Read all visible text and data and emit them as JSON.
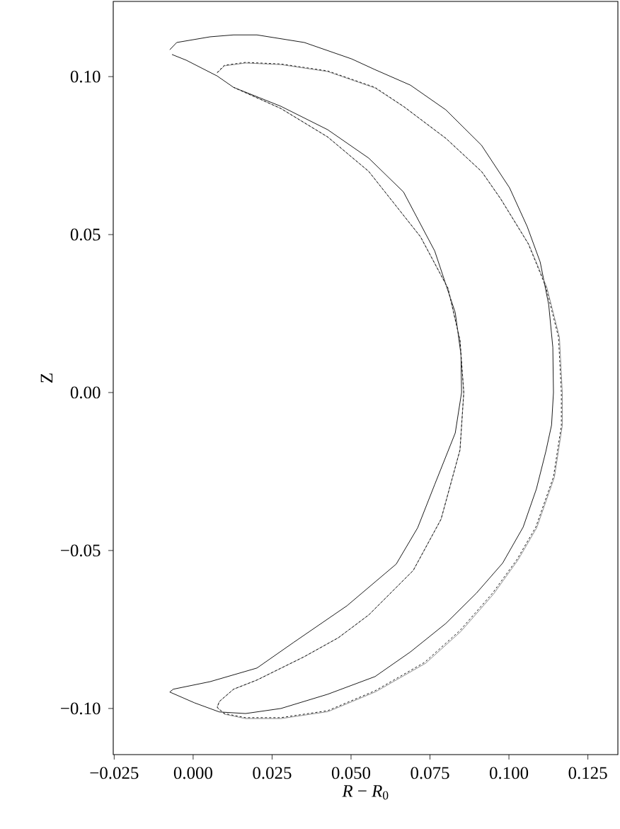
{
  "chart_data": {
    "type": "line",
    "xlabel": "*R* − *R*$_{0}$",
    "ylabel": "Z",
    "xlim": [
      -0.0253,
      0.1345
    ],
    "ylim": [
      -0.1146,
      0.1238
    ],
    "xticks": [
      {
        "value": -0.025,
        "label": "−0.025"
      },
      {
        "value": 0,
        "label": "0.000"
      },
      {
        "value": 0.025,
        "label": "0.025"
      },
      {
        "value": 0.05,
        "label": "0.050"
      },
      {
        "value": 0.075,
        "label": "0.075"
      },
      {
        "value": 0.1,
        "label": "0.100"
      },
      {
        "value": 0.125,
        "label": "0.125"
      }
    ],
    "yticks": [
      {
        "value": -0.1,
        "label": "−0.10"
      },
      {
        "value": -0.05,
        "label": "−0.05"
      },
      {
        "value": 0,
        "label": "0.00"
      },
      {
        "value": 0.05,
        "label": "0.05"
      },
      {
        "value": 0.1,
        "label": "0.10"
      }
    ],
    "series": [
      {
        "color": "#000000",
        "line_style": "solid",
        "x": [
          -0.0074,
          -0.0052,
          0.0054,
          0.0128,
          0.0202,
          0.0352,
          0.0502,
          0.0576,
          0.0688,
          0.08,
          0.0913,
          0.1002,
          0.1058,
          0.1099,
          0.1126,
          0.1139,
          0.1141,
          0.1135,
          0.1117,
          0.1087,
          0.1045,
          0.098,
          0.0897,
          0.08,
          0.0688,
          0.0576,
          0.0426,
          0.0278,
          0.0166,
          0.0083,
          0.0004,
          -0.0074,
          -0.0063,
          0.0054,
          0.0202,
          0.0318,
          0.0487,
          0.0643,
          0.0711,
          0.0765,
          0.083,
          0.085,
          0.0848,
          0.083,
          0.0765,
          0.0666,
          0.0556,
          0.0426,
          0.0278,
          0.0128,
          0.0076,
          -0.0022,
          -0.0067
        ],
        "values": [
          0.1085,
          0.1108,
          0.1126,
          0.1132,
          0.1132,
          0.1108,
          0.1056,
          0.1022,
          0.0973,
          0.0895,
          0.0783,
          0.0648,
          0.0525,
          0.0413,
          0.0278,
          0.0143,
          0,
          -0.0103,
          -0.0186,
          -0.0305,
          -0.0426,
          -0.054,
          -0.0635,
          -0.0731,
          -0.0821,
          -0.0899,
          -0.0955,
          -0.1,
          -0.1016,
          -0.1011,
          -0.0982,
          -0.0948,
          -0.0939,
          -0.0915,
          -0.0872,
          -0.0791,
          -0.0675,
          -0.0543,
          -0.0428,
          -0.0291,
          -0.0128,
          0,
          0.0121,
          0.0253,
          0.0448,
          0.0635,
          0.0742,
          0.0832,
          0.0906,
          0.0966,
          0.1002,
          0.1052,
          0.107
        ]
      },
      {
        "color": "#808080",
        "line_style": "solid",
        "x": [
          0.0076,
          0.0099,
          0.0166,
          0.0278,
          0.0426,
          0.0576,
          0.0668,
          0.0802,
          0.0915,
          0.0975,
          0.1063,
          0.112,
          0.116,
          0.1169,
          0.1169,
          0.1144,
          0.1088,
          0.1028,
          0.0951,
          0.0848,
          0.0736,
          0.0578,
          0.0427,
          0.0278,
          0.0166,
          0.0099,
          0.0076,
          0.0083,
          0.0128,
          0.0202,
          0.0352,
          0.046,
          0.0556,
          0.0697,
          0.0785,
          0.0845,
          0.0857,
          0.0845,
          0.0807,
          0.072,
          0.0556,
          0.0426,
          0.0278,
          0.0128
        ],
        "values": [
          0.1011,
          0.1034,
          0.1043,
          0.1038,
          0.1016,
          0.0964,
          0.0904,
          0.0803,
          0.0698,
          0.0612,
          0.0469,
          0.0333,
          0.0175,
          0,
          -0.0105,
          -0.0268,
          -0.0428,
          -0.0531,
          -0.0638,
          -0.0756,
          -0.0857,
          -0.0947,
          -0.101,
          -0.1032,
          -0.1032,
          -0.1018,
          -0.0997,
          -0.0978,
          -0.0939,
          -0.091,
          -0.0836,
          -0.0776,
          -0.0704,
          -0.0563,
          -0.0401,
          -0.0182,
          0,
          0.0166,
          0.033,
          0.0493,
          0.07,
          0.0809,
          0.0899,
          0.0966
        ]
      },
      {
        "color": "#000000",
        "line_style": "dashed",
        "x": [
          0.0076,
          0.0099,
          0.0166,
          0.0278,
          0.0426,
          0.0576,
          0.0666,
          0.08,
          0.0913,
          0.0973,
          0.1061,
          0.1117,
          0.1157,
          0.1166,
          0.1166,
          0.1141,
          0.1085,
          0.1025,
          0.0948,
          0.0845,
          0.0733,
          0.0576,
          0.0426,
          0.0278,
          0.0166,
          0.0099,
          0.0076,
          0.0083,
          0.0128,
          0.0202,
          0.0352,
          0.046,
          0.0556,
          0.0697,
          0.0785,
          0.0845,
          0.0857,
          0.0845,
          0.0807,
          0.072,
          0.0556,
          0.0426,
          0.0278,
          0.0128
        ],
        "values": [
          0.1013,
          0.1036,
          0.1045,
          0.104,
          0.1018,
          0.0966,
          0.0906,
          0.0805,
          0.07,
          0.0614,
          0.0471,
          0.0334,
          0.0175,
          0,
          -0.0105,
          -0.0267,
          -0.0426,
          -0.0529,
          -0.0635,
          -0.0753,
          -0.0854,
          -0.0944,
          -0.1007,
          -0.1029,
          -0.1029,
          -0.1016,
          -0.0996,
          -0.0978,
          -0.0939,
          -0.091,
          -0.0836,
          -0.0776,
          -0.0704,
          -0.0563,
          -0.0401,
          -0.0182,
          0,
          0.0166,
          0.033,
          0.0493,
          0.07,
          0.0809,
          0.0899,
          0.0966
        ]
      }
    ]
  }
}
